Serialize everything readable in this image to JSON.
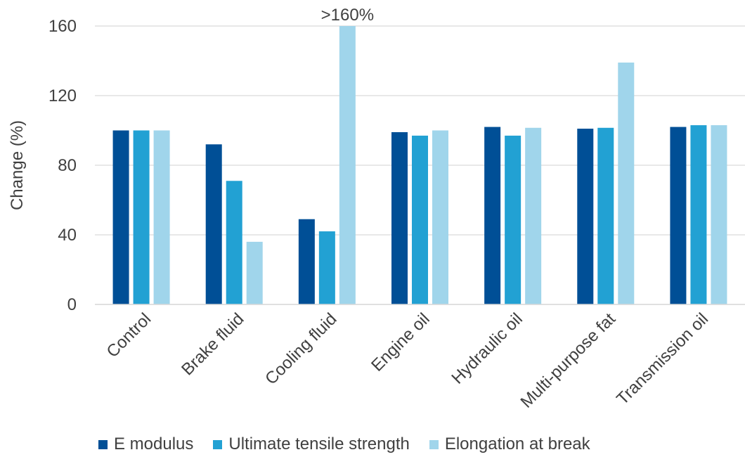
{
  "chart_data": {
    "type": "bar",
    "title": "",
    "xlabel": "",
    "ylabel": "Change (%)",
    "ylim": [
      0,
      160
    ],
    "yticks": [
      0,
      40,
      80,
      120,
      160
    ],
    "grid": true,
    "legend_position": "bottom",
    "categories": [
      "Control",
      "Brake fluid",
      "Cooling fluid",
      "Engine oil",
      "Hydraulic oil",
      "Multi-purpose fat",
      "Transmission oil"
    ],
    "series": [
      {
        "name": "E modulus",
        "color": "#004f96",
        "values": [
          100,
          92,
          49,
          99,
          102,
          101,
          102
        ]
      },
      {
        "name": "Ultimate tensile strength",
        "color": "#22a1d3",
        "values": [
          100,
          71,
          42,
          97,
          97,
          101.5,
          103
        ]
      },
      {
        "name": "Elongation at break",
        "color": "#a0d5eb",
        "values": [
          100,
          36,
          160,
          100,
          101.5,
          139,
          103
        ]
      }
    ],
    "annotations": [
      {
        "text": ">160%",
        "category": "Cooling fluid",
        "series": "Elongation at break"
      }
    ]
  }
}
